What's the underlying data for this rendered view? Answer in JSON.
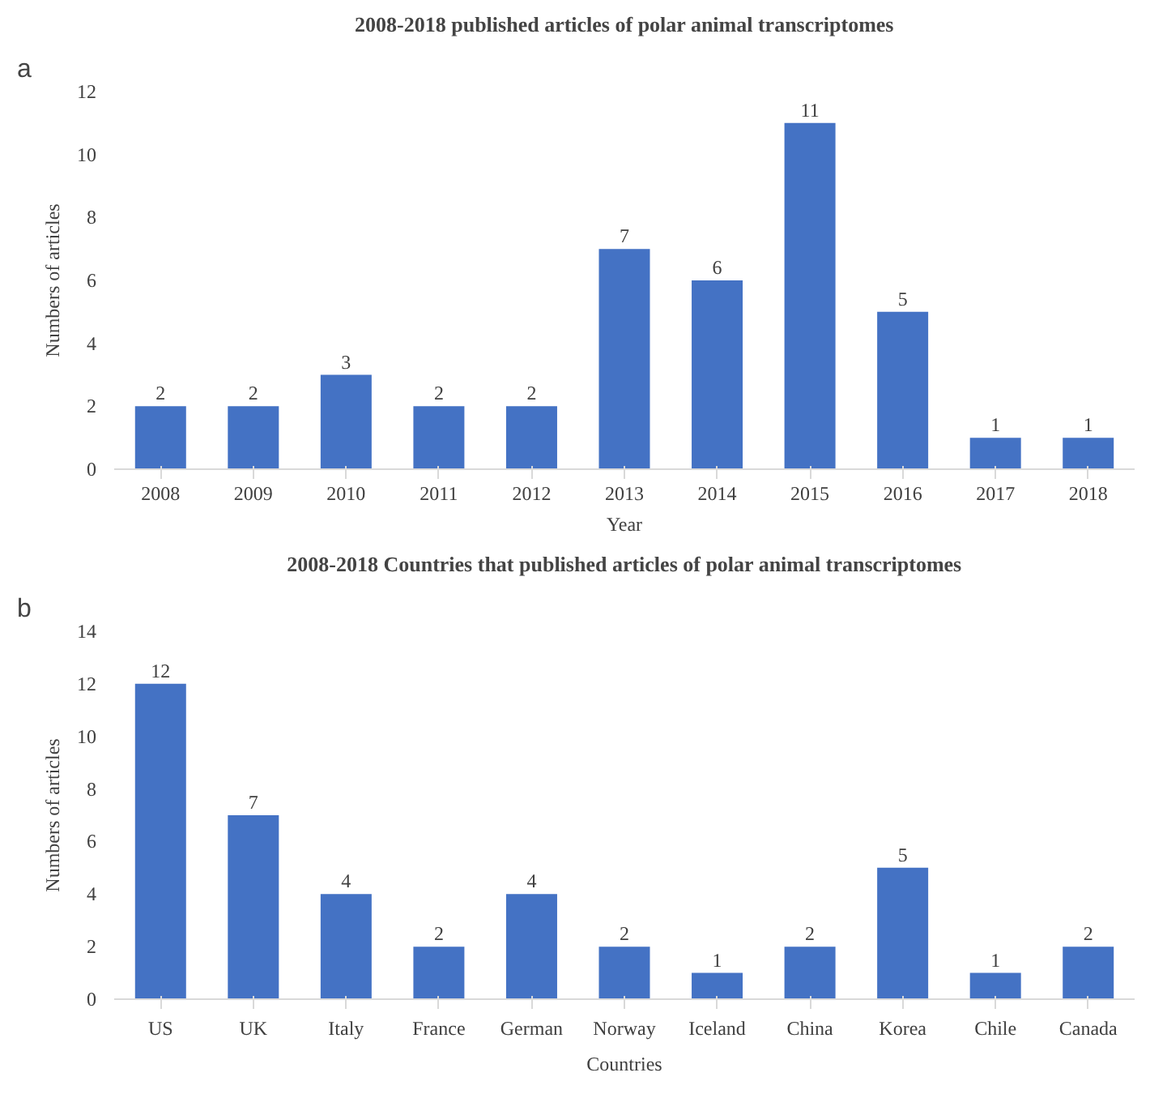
{
  "chart_data": [
    {
      "type": "bar",
      "title": "2008-2018 published articles of polar animal transcriptomes",
      "xlabel": "Year",
      "ylabel": "Numbers of articles",
      "annotations": [
        "a"
      ],
      "categories": [
        "2008",
        "2009",
        "2010",
        "2011",
        "2012",
        "2013",
        "2014",
        "2015",
        "2016",
        "2017",
        "2018"
      ],
      "values": [
        2,
        2,
        3,
        2,
        2,
        7,
        6,
        11,
        5,
        1,
        1
      ],
      "color": "#4472c4",
      "ylim": [
        0,
        12
      ],
      "yticks": [
        0,
        2,
        4,
        6,
        8,
        10,
        12
      ],
      "data_labels": true,
      "grid": false
    },
    {
      "type": "bar",
      "title": "2008-2018 Countries that published articles of polar animal transcriptomes",
      "xlabel": "Countries",
      "ylabel": "Numbers of articles",
      "annotations": [
        "b"
      ],
      "categories": [
        "US",
        "UK",
        "Italy",
        "France",
        "German",
        "Norway",
        "Iceland",
        "China",
        "Korea",
        "Chile",
        "Canada"
      ],
      "values": [
        12,
        7,
        4,
        2,
        4,
        2,
        1,
        2,
        5,
        1,
        2
      ],
      "color": "#4472c4",
      "ylim": [
        0,
        14
      ],
      "yticks": [
        0,
        2,
        4,
        6,
        8,
        10,
        12,
        14
      ],
      "data_labels": true,
      "grid": false
    }
  ]
}
